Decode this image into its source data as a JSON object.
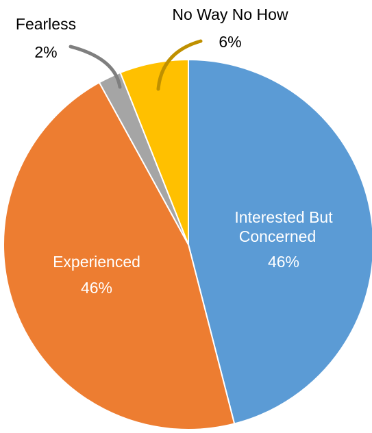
{
  "chart_data": {
    "type": "pie",
    "title": "",
    "slices": [
      {
        "label": "Interested But Concerned",
        "value": 46,
        "value_label": "46%",
        "color": "#5B9BD5"
      },
      {
        "label": "Experienced",
        "value": 46,
        "value_label": "46%",
        "color": "#ED7D31"
      },
      {
        "label": "Fearless",
        "value": 2,
        "value_label": "2%",
        "color": "#A5A5A5"
      },
      {
        "label": "No Way No How",
        "value": 6,
        "value_label": "6%",
        "color": "#FFC000"
      }
    ],
    "start_angle_deg": 0,
    "direction": "clockwise",
    "legend": "none",
    "label_text": {
      "interested_line1": "Interested But",
      "interested_line2": "Concerned",
      "experienced": "Experienced",
      "fearless": "Fearless",
      "no_way": "No Way No How"
    }
  }
}
